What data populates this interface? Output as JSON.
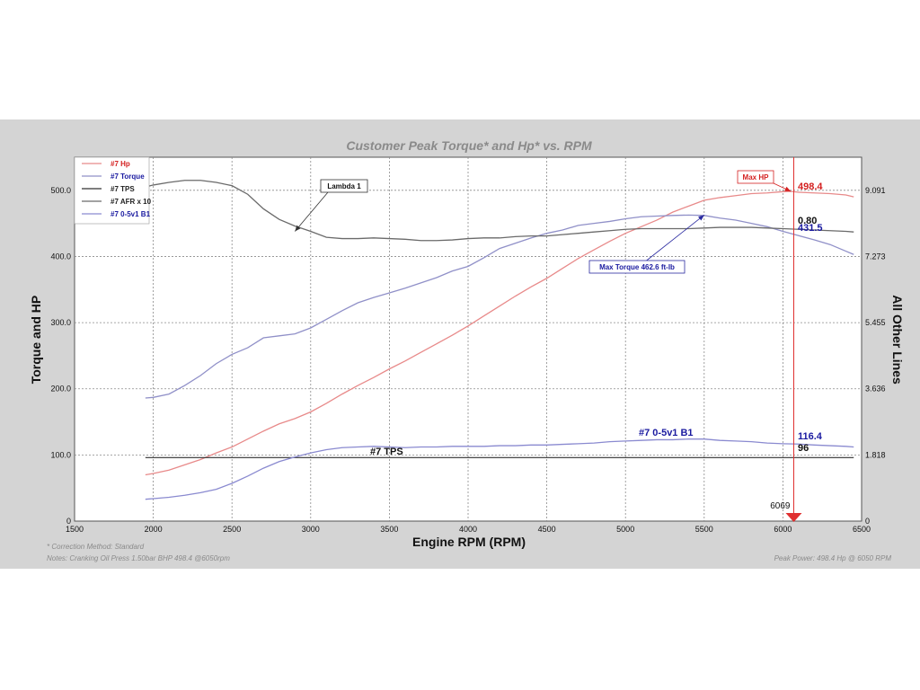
{
  "chart_data": {
    "type": "line",
    "title": "Customer Peak Torque* and Hp* vs. RPM",
    "xlabel": "Engine RPM (RPM)",
    "ylabel": "Torque and HP",
    "y2label": "All Other Lines",
    "xlim": [
      1500,
      6500
    ],
    "ylim": [
      0,
      550
    ],
    "x_ticks": [
      "1500",
      "2000",
      "2500",
      "3000",
      "3500",
      "4000",
      "4500",
      "5000",
      "5500",
      "6000",
      "6500"
    ],
    "y_ticks": [
      "0",
      "100.0",
      "200.0",
      "300.0",
      "400.0",
      "500.0"
    ],
    "y2_ticks": [
      {
        "label": "0",
        "at": 0
      },
      {
        "label": "1.818",
        "at": 100
      },
      {
        "label": "3.636",
        "at": 200
      },
      {
        "label": "5.455",
        "at": 300
      },
      {
        "label": "7.273",
        "at": 400
      },
      {
        "label": "9.091",
        "at": 500
      }
    ],
    "grid": true,
    "legend_position": "top-left",
    "series": [
      {
        "name": "#7 Hp",
        "color": "#e88a8a",
        "legend_color": "#d42020",
        "x": [
          1950,
          2000,
          2100,
          2200,
          2300,
          2400,
          2500,
          2600,
          2700,
          2800,
          2900,
          3000,
          3100,
          3200,
          3300,
          3400,
          3500,
          3600,
          3700,
          3800,
          3900,
          4000,
          4100,
          4200,
          4300,
          4400,
          4500,
          4600,
          4700,
          4800,
          4900,
          5000,
          5100,
          5200,
          5300,
          5400,
          5500,
          5600,
          5700,
          5800,
          5900,
          6000,
          6050,
          6100,
          6200,
          6300,
          6400,
          6450
        ],
        "values": [
          70,
          72,
          77,
          85,
          93,
          103,
          112,
          124,
          136,
          147,
          155,
          165,
          178,
          192,
          205,
          217,
          230,
          242,
          255,
          268,
          281,
          295,
          310,
          325,
          340,
          354,
          367,
          382,
          397,
          410,
          423,
          435,
          445,
          455,
          467,
          476,
          485,
          489,
          492,
          495,
          496,
          498,
          498.4,
          497,
          496,
          495,
          493,
          490
        ]
      },
      {
        "name": "#7 Torque",
        "color": "#9090c8",
        "legend_color": "#1a1aa0",
        "x": [
          1950,
          2000,
          2100,
          2200,
          2300,
          2400,
          2500,
          2600,
          2700,
          2800,
          2900,
          3000,
          3100,
          3200,
          3300,
          3400,
          3500,
          3600,
          3700,
          3800,
          3900,
          4000,
          4100,
          4200,
          4300,
          4400,
          4500,
          4600,
          4700,
          4800,
          4900,
          5000,
          5100,
          5200,
          5300,
          5400,
          5500,
          5600,
          5700,
          5800,
          5900,
          6000,
          6100,
          6200,
          6300,
          6400,
          6450
        ],
        "values": [
          186,
          187,
          192,
          205,
          220,
          238,
          252,
          262,
          277,
          280,
          283,
          292,
          305,
          318,
          330,
          338,
          345,
          352,
          360,
          368,
          378,
          385,
          398,
          412,
          420,
          428,
          435,
          440,
          447,
          450,
          453,
          457,
          460,
          461,
          462,
          462.6,
          462,
          458,
          455,
          450,
          445,
          438,
          431.5,
          425,
          418,
          408,
          403
        ]
      },
      {
        "name": "#7 TPS",
        "color": "#303030",
        "legend_color": "#222222",
        "x": [
          1950,
          6450
        ],
        "values": [
          96,
          96
        ]
      },
      {
        "name": "#7 AFR x 10",
        "color": "#6a6a6a",
        "legend_color": "#222222",
        "x": [
          1950,
          2000,
          2100,
          2200,
          2300,
          2400,
          2500,
          2600,
          2700,
          2800,
          2900,
          3000,
          3100,
          3200,
          3300,
          3400,
          3500,
          3600,
          3700,
          3800,
          3900,
          4000,
          4100,
          4200,
          4300,
          4400,
          4500,
          4600,
          4700,
          4800,
          4900,
          5000,
          5100,
          5200,
          5300,
          5400,
          5500,
          5600,
          5700,
          5800,
          5900,
          6000,
          6100,
          6200,
          6300,
          6400,
          6450
        ],
        "values": [
          505,
          508,
          512,
          515,
          515,
          512,
          507,
          494,
          472,
          456,
          446,
          438,
          429,
          427,
          427,
          428,
          427,
          426,
          424,
          424,
          425,
          427,
          428,
          428,
          430,
          431,
          431,
          433,
          435,
          437,
          439,
          441,
          442,
          442,
          442,
          442,
          443,
          444,
          444,
          444,
          443,
          442,
          441,
          440,
          439,
          438,
          437
        ]
      },
      {
        "name": "#7 0-5v1 B1",
        "color": "#8a8ad0",
        "legend_color": "#1a1aa0",
        "x": [
          1950,
          2000,
          2100,
          2200,
          2300,
          2400,
          2500,
          2600,
          2700,
          2800,
          2900,
          3000,
          3100,
          3200,
          3300,
          3400,
          3500,
          3600,
          3700,
          3800,
          3900,
          4000,
          4100,
          4200,
          4300,
          4400,
          4500,
          4600,
          4700,
          4800,
          4900,
          5000,
          5100,
          5200,
          5300,
          5400,
          5500,
          5600,
          5700,
          5800,
          5900,
          6000,
          6100,
          6200,
          6300,
          6400,
          6450
        ],
        "values": [
          33,
          34,
          36,
          39,
          43,
          48,
          57,
          68,
          80,
          90,
          97,
          103,
          108,
          111,
          112,
          113,
          112,
          111,
          112,
          112,
          113,
          113,
          113,
          114,
          114,
          115,
          115,
          116,
          117,
          118,
          120,
          121,
          122,
          123,
          123,
          124,
          124,
          122,
          121,
          120,
          118,
          117,
          116.4,
          115,
          114,
          113,
          112
        ]
      }
    ],
    "annotations": [
      {
        "text": "Lambda 1",
        "target_x": 2900,
        "target_y": 438
      },
      {
        "text": "Max Torque 462.6 ft-lb",
        "target_x": 5500,
        "target_y": 462.6
      },
      {
        "text": "Max HP",
        "target_x": 6050,
        "target_y": 498.4
      }
    ],
    "value_labels": [
      {
        "text": "498.4",
        "color": "#d42020"
      },
      {
        "text": "0.80",
        "color": "#111111"
      },
      {
        "text": "431.5",
        "color": "#1a1aa0"
      },
      {
        "text": "116.4",
        "color": "#1a1aa0"
      },
      {
        "text": "96",
        "color": "#111111"
      },
      {
        "text": "#7 0-5v1 B1",
        "color": "#1a1aa0"
      },
      {
        "text": "#7 TPS",
        "color": "#111111"
      }
    ],
    "cursor": {
      "rpm": 6069,
      "label": "6069"
    }
  },
  "footer": {
    "correction": "* Correction Method: Standard",
    "notes": "Notes: Cranking Oil Press 1.50bar  BHP 498.4 @6050rpm",
    "peak": "Peak Power: 498.4 Hp @ 6050 RPM"
  },
  "colors": {
    "background": "#d4d4d4",
    "plot_bg": "#ffffff",
    "grid": "#8a8a8a",
    "cursor": "#e03030"
  }
}
